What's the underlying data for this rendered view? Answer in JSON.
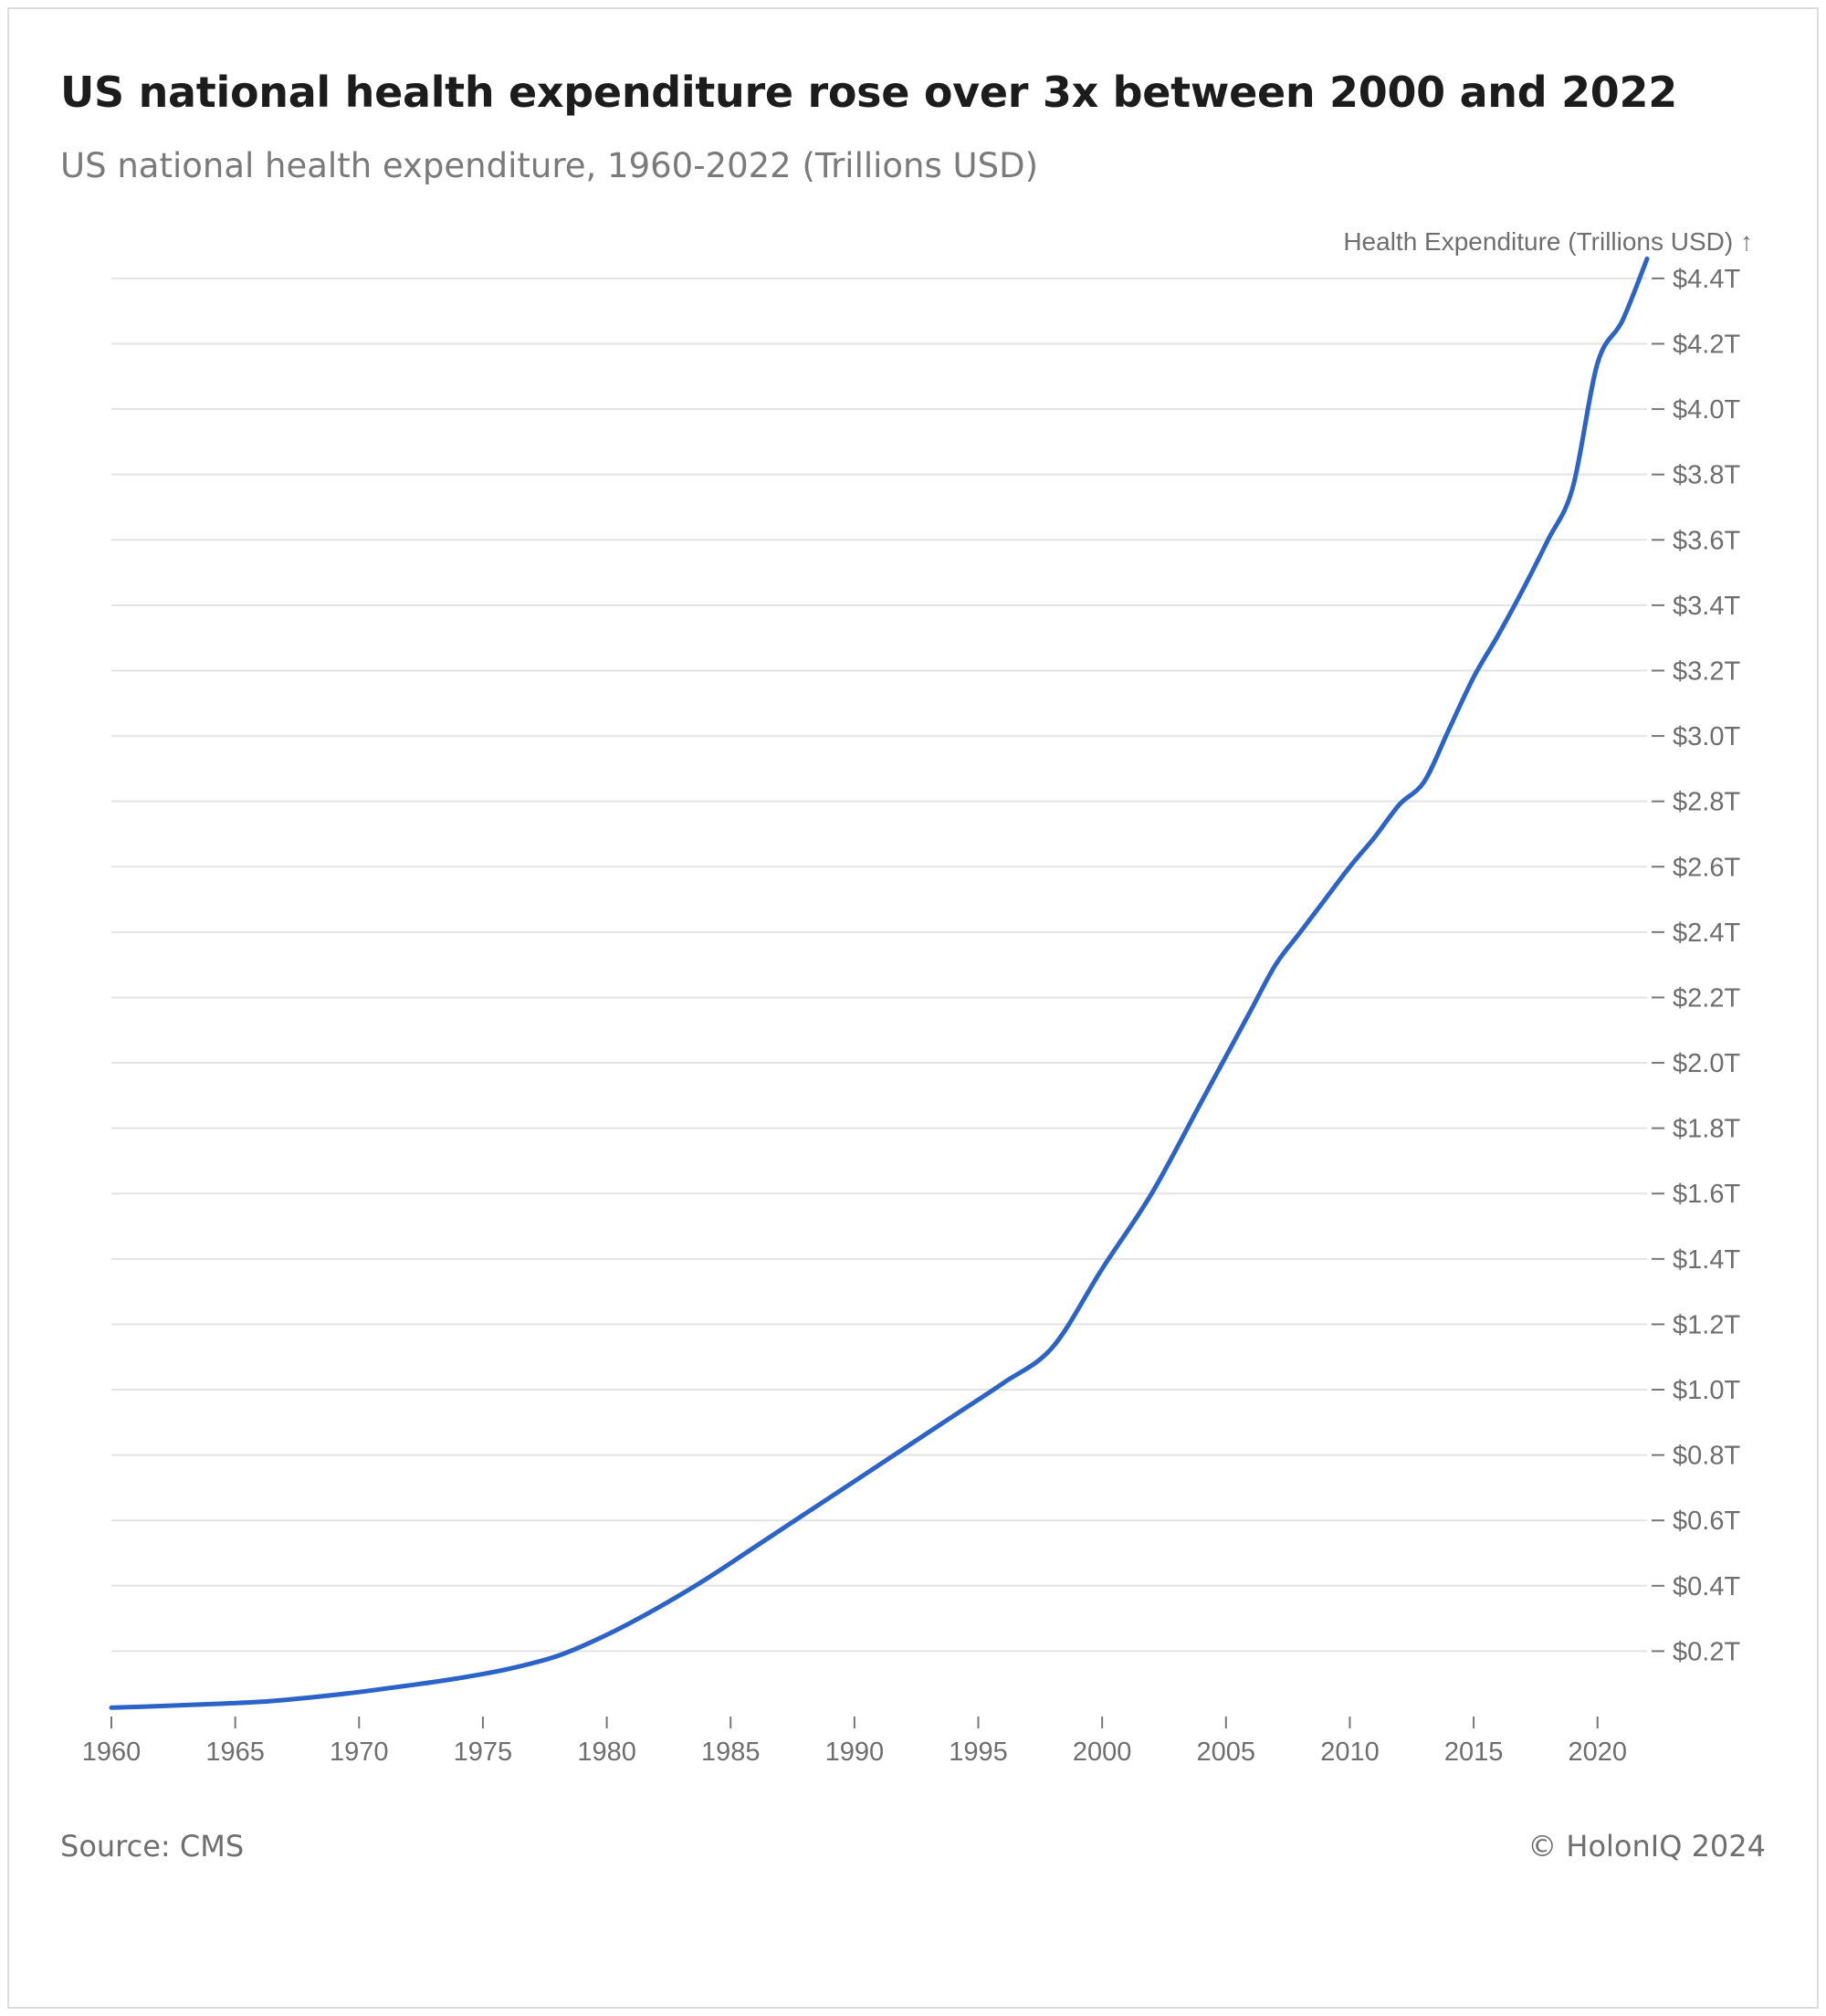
{
  "header": {
    "title": "US national health expenditure rose over 3x between 2000 and 2022",
    "subtitle": "US national health expenditure, 1960-2022 (Trillions USD)"
  },
  "footer": {
    "source": "Source: CMS",
    "credit": "© HolonIQ 2024"
  },
  "colors": {
    "line": "#2b63c8",
    "grid": "#e3e3e3",
    "axis_text": "#6e6e6e"
  },
  "chart_data": {
    "type": "line",
    "title": "US national health expenditure rose over 3x between 2000 and 2022",
    "subtitle": "US national health expenditure, 1960-2022 (Trillions USD)",
    "ylabel": "Health Expenditure (Trillions USD) ↑",
    "xlabel": "",
    "xlim": [
      1960,
      2022
    ],
    "ylim": [
      0,
      4.45
    ],
    "y_axis_side": "right",
    "grid": "horizontal",
    "x_ticks": [
      1960,
      1965,
      1970,
      1975,
      1980,
      1985,
      1990,
      1995,
      2000,
      2005,
      2010,
      2015,
      2020
    ],
    "x_tick_labels": [
      "1960",
      "1965",
      "1970",
      "1975",
      "1980",
      "1985",
      "1990",
      "1995",
      "2000",
      "2005",
      "2010",
      "2015",
      "2020"
    ],
    "y_ticks": [
      0.2,
      0.4,
      0.6,
      0.8,
      1.0,
      1.2,
      1.4,
      1.6,
      1.8,
      2.0,
      2.2,
      2.4,
      2.6,
      2.8,
      3.0,
      3.2,
      3.4,
      3.6,
      3.8,
      4.0,
      4.2,
      4.4
    ],
    "y_tick_labels": [
      "$0.2T",
      "$0.4T",
      "$0.6T",
      "$0.8T",
      "$1.0T",
      "$1.2T",
      "$1.4T",
      "$1.6T",
      "$1.8T",
      "$2.0T",
      "$2.2T",
      "$2.4T",
      "$2.6T",
      "$2.8T",
      "$3.0T",
      "$3.2T",
      "$3.4T",
      "$3.6T",
      "$3.8T",
      "$4.0T",
      "$4.2T",
      "$4.4T"
    ],
    "series": [
      {
        "x": [
          1960,
          1962,
          1964,
          1966,
          1968,
          1970,
          1972,
          1974,
          1976,
          1978,
          1980,
          1982,
          1984,
          1986,
          1988,
          1990,
          1992,
          1994,
          1996,
          1998,
          2000,
          2002,
          2004,
          2005,
          2006,
          2007,
          2008,
          2009,
          2010,
          2011,
          2012,
          2013,
          2014,
          2015,
          2016,
          2017,
          2018,
          2019,
          2020,
          2021,
          2022
        ],
        "values": [
          0.027,
          0.032,
          0.038,
          0.045,
          0.058,
          0.075,
          0.095,
          0.117,
          0.145,
          0.185,
          0.25,
          0.33,
          0.42,
          0.52,
          0.62,
          0.72,
          0.82,
          0.92,
          1.02,
          1.13,
          1.37,
          1.6,
          1.88,
          2.02,
          2.16,
          2.3,
          2.4,
          2.5,
          2.6,
          2.69,
          2.79,
          2.86,
          3.02,
          3.18,
          3.31,
          3.45,
          3.6,
          3.76,
          4.14,
          4.27,
          4.46
        ]
      }
    ]
  }
}
